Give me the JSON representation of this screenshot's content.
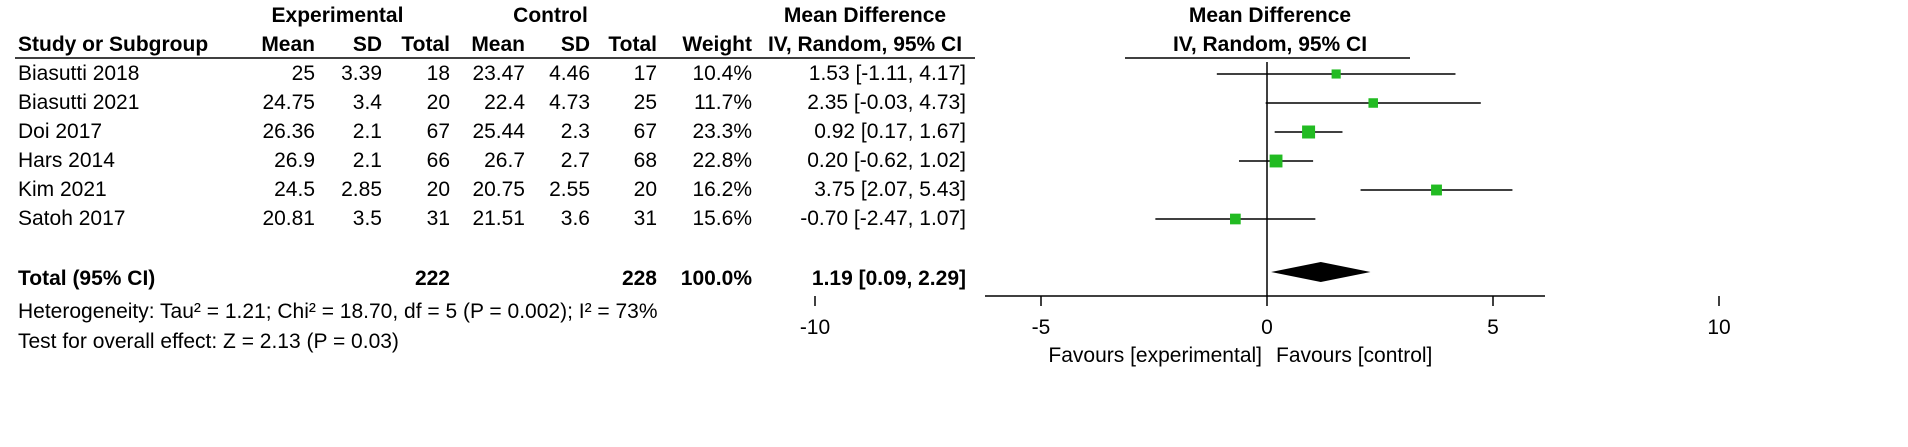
{
  "headers": {
    "experimental": "Experimental",
    "control": "Control",
    "mean_difference": "Mean Difference",
    "plot_title": "Mean Difference",
    "plot_subtitle": "IV, Random, 95% CI",
    "study": "Study or Subgroup",
    "exp_mean": "Mean",
    "exp_sd": "SD",
    "exp_total": "Total",
    "ctl_mean": "Mean",
    "ctl_sd": "SD",
    "ctl_total": "Total",
    "weight": "Weight",
    "ci": "IV, Random, 95% CI"
  },
  "studies": [
    {
      "name": "Biasutti 2018",
      "exp_mean": "25",
      "exp_sd": "3.39",
      "exp_total": "18",
      "ctl_mean": "23.47",
      "ctl_sd": "4.46",
      "ctl_total": "17",
      "weight": "10.4%",
      "ci": "1.53 [-1.11, 4.17]"
    },
    {
      "name": "Biasutti 2021",
      "exp_mean": "24.75",
      "exp_sd": "3.4",
      "exp_total": "20",
      "ctl_mean": "22.4",
      "ctl_sd": "4.73",
      "ctl_total": "25",
      "weight": "11.7%",
      "ci": "2.35 [-0.03, 4.73]"
    },
    {
      "name": "Doi 2017",
      "exp_mean": "26.36",
      "exp_sd": "2.1",
      "exp_total": "67",
      "ctl_mean": "25.44",
      "ctl_sd": "2.3",
      "ctl_total": "67",
      "weight": "23.3%",
      "ci": "0.92 [0.17, 1.67]"
    },
    {
      "name": "Hars 2014",
      "exp_mean": "26.9",
      "exp_sd": "2.1",
      "exp_total": "66",
      "ctl_mean": "26.7",
      "ctl_sd": "2.7",
      "ctl_total": "68",
      "weight": "22.8%",
      "ci": "0.20 [-0.62, 1.02]"
    },
    {
      "name": "Kim 2021",
      "exp_mean": "24.5",
      "exp_sd": "2.85",
      "exp_total": "20",
      "ctl_mean": "20.75",
      "ctl_sd": "2.55",
      "ctl_total": "20",
      "weight": "16.2%",
      "ci": "3.75 [2.07, 5.43]"
    },
    {
      "name": "Satoh 2017",
      "exp_mean": "20.81",
      "exp_sd": "3.5",
      "exp_total": "31",
      "ctl_mean": "21.51",
      "ctl_sd": "3.6",
      "ctl_total": "31",
      "weight": "15.6%",
      "ci": "-0.70 [-2.47, 1.07]"
    }
  ],
  "total": {
    "label": "Total (95% CI)",
    "exp_total": "222",
    "ctl_total": "228",
    "weight": "100.0%",
    "ci": "1.19 [0.09, 2.29]"
  },
  "heterogeneity": "Heterogeneity: Tau² = 1.21; Chi² = 18.70, df = 5 (P = 0.002); I² = 73%",
  "overall_effect": "Test for overall effect: Z = 2.13 (P = 0.03)",
  "chart_data": {
    "type": "scatter",
    "title": "Mean Difference",
    "subtitle": "IV, Random, 95% CI",
    "xlim": [
      -12,
      12
    ],
    "xticks": [
      -10,
      -5,
      0,
      5,
      10
    ],
    "xtick_labels": [
      "-10",
      "-5",
      "0",
      "5",
      "10"
    ],
    "favours_left": "Favours [experimental]",
    "favours_right": "Favours [control]",
    "marker_color": "#22bb22",
    "pooled_color": "#000000",
    "points": [
      {
        "study": "Biasutti 2018",
        "md": 1.53,
        "lo": -1.11,
        "hi": 4.17,
        "weight": 10.4
      },
      {
        "study": "Biasutti 2021",
        "md": 2.35,
        "lo": -0.03,
        "hi": 4.73,
        "weight": 11.7
      },
      {
        "study": "Doi 2017",
        "md": 0.92,
        "lo": 0.17,
        "hi": 1.67,
        "weight": 23.3
      },
      {
        "study": "Hars 2014",
        "md": 0.2,
        "lo": -0.62,
        "hi": 1.02,
        "weight": 22.8
      },
      {
        "study": "Kim 2021",
        "md": 3.75,
        "lo": 2.07,
        "hi": 5.43,
        "weight": 16.2
      },
      {
        "study": "Satoh 2017",
        "md": -0.7,
        "lo": -2.47,
        "hi": 1.07,
        "weight": 15.6
      }
    ],
    "pooled": {
      "md": 1.19,
      "lo": 0.09,
      "hi": 2.29
    }
  }
}
